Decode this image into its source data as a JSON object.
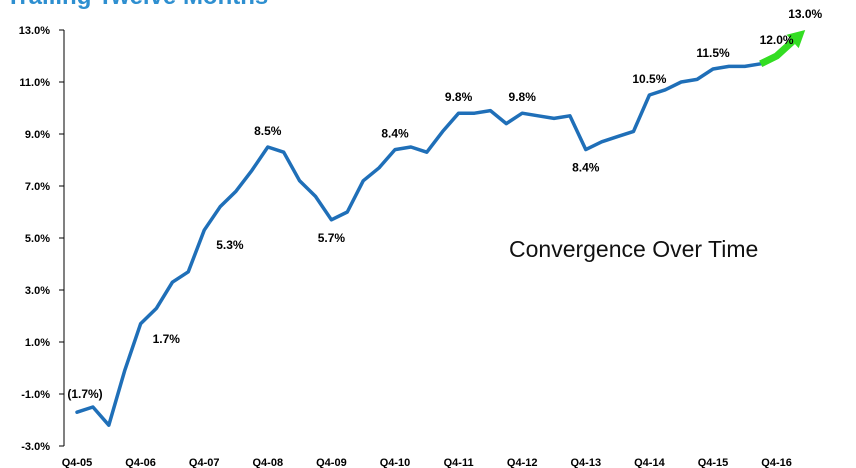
{
  "chart_data": {
    "type": "line",
    "title": "Trailing Twelve Months",
    "xlabel": "",
    "ylabel": "",
    "ylim": [
      -3.0,
      13.0
    ],
    "y_ticks": [
      "13.0%",
      "11.0%",
      "9.0%",
      "7.0%",
      "5.0%",
      "3.0%",
      "1.0%",
      "-1.0%",
      "-3.0%"
    ],
    "y_tick_values": [
      13,
      11,
      9,
      7,
      5,
      3,
      1,
      -1,
      -3
    ],
    "categories": [
      "Q4-05",
      "Q4-06",
      "Q4-07",
      "Q4-08",
      "Q4-09",
      "Q4-10",
      "Q4-11",
      "Q4-12",
      "Q4-13",
      "Q4-14",
      "Q4-15",
      "Q4-16"
    ],
    "grid": false,
    "series": [
      {
        "color": "#1f6fb8",
        "x": [
          0,
          0.25,
          0.5,
          0.75,
          1,
          1.25,
          1.5,
          1.75,
          2,
          2.25,
          2.5,
          2.75,
          3,
          3.25,
          3.5,
          3.75,
          4,
          4.25,
          4.5,
          4.75,
          5,
          5.25,
          5.5,
          5.75,
          6,
          6.25,
          6.5,
          6.75,
          7,
          7.25,
          7.5,
          7.75,
          8,
          8.25,
          8.5,
          8.75,
          9,
          9.25,
          9.5,
          9.75,
          10,
          10.25,
          10.5,
          10.75
        ],
        "y": [
          -1.7,
          -1.5,
          -2.2,
          -0.1,
          1.7,
          2.3,
          3.3,
          3.7,
          5.3,
          6.2,
          6.8,
          7.6,
          8.5,
          8.3,
          7.2,
          6.6,
          5.7,
          6.0,
          7.2,
          7.7,
          8.4,
          8.5,
          8.3,
          9.1,
          9.8,
          9.8,
          9.9,
          9.4,
          9.8,
          9.7,
          9.6,
          9.7,
          8.4,
          8.7,
          8.9,
          9.1,
          10.5,
          10.7,
          11.0,
          11.1,
          11.5,
          11.6,
          11.6,
          11.7
        ]
      },
      {
        "color": "#33dd22",
        "arrow": true,
        "x": [
          10.75,
          11,
          11.45
        ],
        "y": [
          11.7,
          12.0,
          13.0
        ]
      }
    ],
    "data_labels": [
      {
        "text": "(1.7%)",
        "x": 0,
        "y": -1.7,
        "pos": "above"
      },
      {
        "text": "1.7%",
        "x": 1,
        "y": 1.7,
        "pos": "right"
      },
      {
        "text": "5.3%",
        "x": 2,
        "y": 5.3,
        "pos": "right"
      },
      {
        "text": "8.5%",
        "x": 3,
        "y": 8.5,
        "pos": "above"
      },
      {
        "text": "5.7%",
        "x": 4,
        "y": 5.7,
        "pos": "below"
      },
      {
        "text": "8.4%",
        "x": 5,
        "y": 8.4,
        "pos": "above"
      },
      {
        "text": "9.8%",
        "x": 6,
        "y": 9.8,
        "pos": "above"
      },
      {
        "text": "9.8%",
        "x": 7,
        "y": 9.8,
        "pos": "above"
      },
      {
        "text": "8.4%",
        "x": 8,
        "y": 8.4,
        "pos": "below"
      },
      {
        "text": "10.5%",
        "x": 9,
        "y": 10.5,
        "pos": "above"
      },
      {
        "text": "11.5%",
        "x": 10,
        "y": 11.5,
        "pos": "above"
      },
      {
        "text": "12.0%",
        "x": 11,
        "y": 12.0,
        "pos": "above"
      },
      {
        "text": "13.0%",
        "x": 11.45,
        "y": 13.0,
        "pos": "above"
      }
    ],
    "annotation": "Convergence Over Time"
  }
}
